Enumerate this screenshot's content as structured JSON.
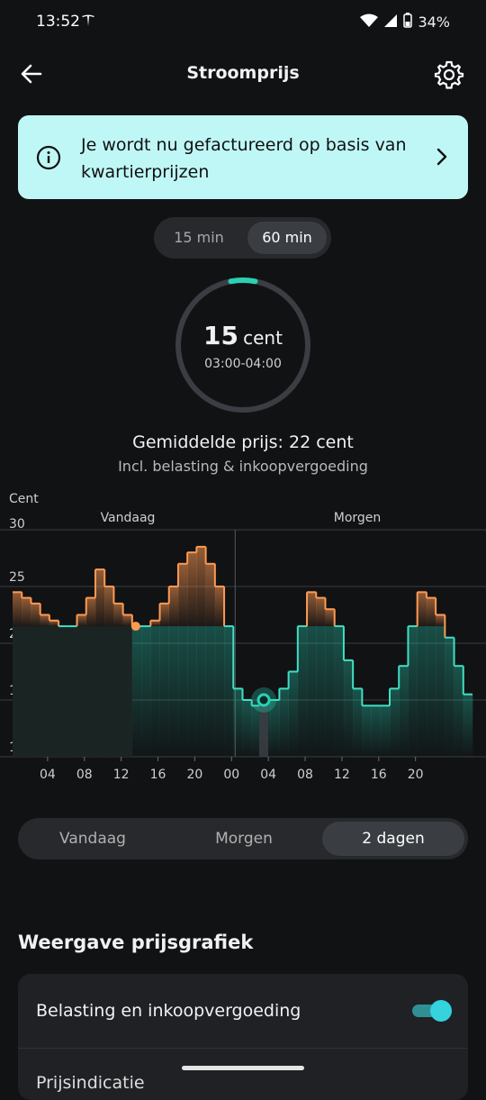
{
  "status_bar": {
    "time": "13:52",
    "battery": "34%"
  },
  "header": {
    "title": "Stroomprijs"
  },
  "banner": {
    "text": "Je wordt nu gefactureerd op basis van kwartierprijzen"
  },
  "interval_toggle": {
    "options": [
      "15 min",
      "60 min"
    ],
    "selected": "60 min"
  },
  "current_price": {
    "value": "15",
    "unit": "cent",
    "time_range": "03:00-04:00",
    "ring_progress": 0.06
  },
  "average": {
    "text": "Gemiddelde prijs: 22 cent",
    "subtext": "Incl. belasting & inkoopvergoeding"
  },
  "chart_data": {
    "type": "area",
    "ylabel": "Cent",
    "ylim": [
      10,
      30
    ],
    "yticks": [
      "30",
      "25",
      "20",
      "15",
      "10"
    ],
    "xticks": [
      "04",
      "08",
      "12",
      "16",
      "20",
      "00",
      "04",
      "08",
      "12",
      "16",
      "20"
    ],
    "day_labels": [
      "Vandaag",
      "Morgen"
    ],
    "threshold": 21.5,
    "current_hour_index": 27,
    "now_marker_hour": 13,
    "values": [
      24.5,
      24,
      23.5,
      22.5,
      22,
      21.5,
      21.5,
      22.5,
      24,
      26.5,
      25,
      23.5,
      22.5,
      21.5,
      21.5,
      22,
      23.5,
      25,
      27,
      28,
      28.5,
      27,
      25,
      21.5,
      16,
      15,
      14.5,
      15,
      15,
      16,
      17.5,
      21.5,
      24.5,
      24,
      23,
      21.5,
      18.5,
      16,
      14.5,
      14.5,
      14.5,
      16,
      18,
      21.5,
      24.5,
      24,
      22.5,
      20.5,
      18,
      15.5
    ],
    "colors": {
      "above": "#ff9a52",
      "below": "#3fe0c4",
      "accent": "#2ad1b4"
    }
  },
  "range_toggle": {
    "options": [
      "Vandaag",
      "Morgen",
      "2 dagen"
    ],
    "selected": "2 dagen"
  },
  "settings": {
    "section_title": "Weergave prijsgrafiek",
    "row1_label": "Belasting en inkoopvergoeding",
    "row1_enabled": true,
    "row2_label": "Prijsindicatie"
  },
  "icons": {
    "back": "arrow-left-icon",
    "settings": "gear-icon",
    "info": "info-icon",
    "chevron": "chevron-right-icon"
  }
}
